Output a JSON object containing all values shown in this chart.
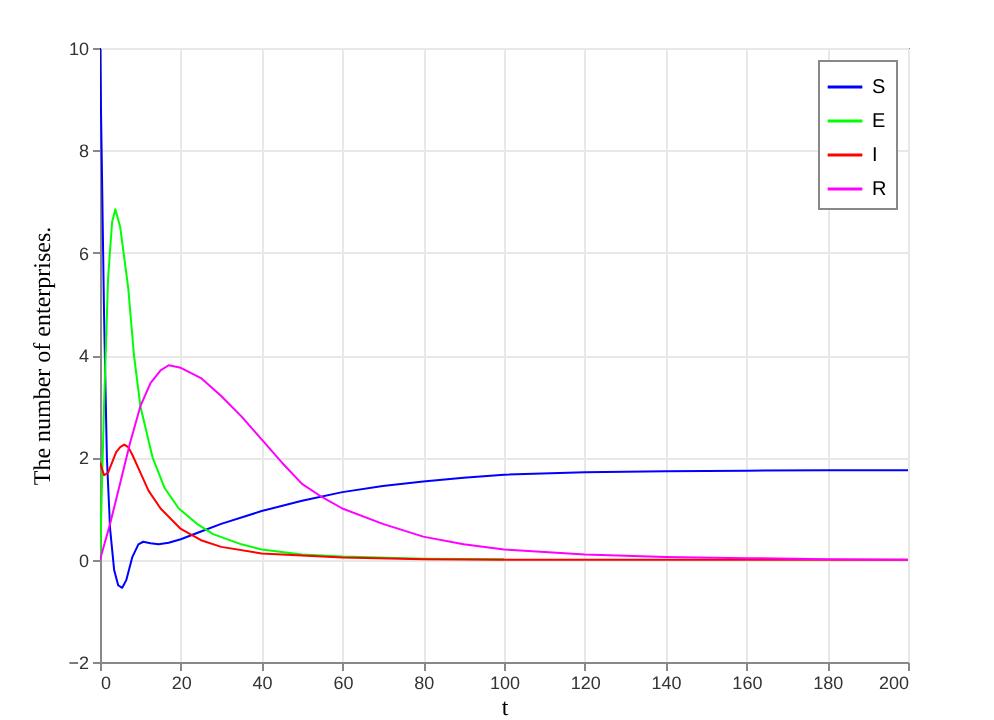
{
  "chart_data": {
    "type": "line",
    "xlabel": "t",
    "ylabel": "The number of enterprises.",
    "xlim": [
      0,
      200
    ],
    "ylim": [
      -2,
      10
    ],
    "xticks": [
      0,
      20,
      40,
      60,
      80,
      100,
      120,
      140,
      160,
      180,
      200
    ],
    "yticks": [
      -2,
      0,
      2,
      4,
      6,
      8,
      10
    ],
    "grid": true,
    "legend": "top right",
    "line_style": "solid",
    "marker": "none",
    "series": [
      {
        "name": "S",
        "color": "#0000ff",
        "x": [
          0,
          0.5,
          1,
          1.7,
          2.5,
          3.5,
          4.5,
          5.5,
          6.5,
          8,
          9.5,
          10.7,
          12.5,
          14.5,
          17,
          20,
          25,
          30,
          40,
          50,
          60,
          70,
          80,
          90,
          100,
          120,
          140,
          160,
          180,
          200
        ],
        "values": [
          10,
          7.5,
          4.8,
          2,
          0.6,
          -0.2,
          -0.5,
          -0.55,
          -0.4,
          0.05,
          0.3,
          0.35,
          0.32,
          0.3,
          0.33,
          0.4,
          0.55,
          0.7,
          0.95,
          1.15,
          1.32,
          1.44,
          1.53,
          1.6,
          1.66,
          1.71,
          1.73,
          1.74,
          1.75,
          1.75
        ]
      },
      {
        "name": "E",
        "color": "#00ff00",
        "x": [
          0,
          0.5,
          1,
          2,
          3,
          3.8,
          5,
          7,
          8.4,
          10,
          13,
          16,
          19.5,
          24,
          28,
          35,
          40,
          50,
          60,
          80,
          100
        ],
        "values": [
          0,
          1.5,
          3,
          5.5,
          6.6,
          6.85,
          6.5,
          5.3,
          4,
          3,
          2,
          1.4,
          1,
          0.7,
          0.5,
          0.3,
          0.2,
          0.1,
          0.06,
          0.02,
          0.01
        ]
      },
      {
        "name": "I",
        "color": "#ff0000",
        "x": [
          0,
          1,
          2,
          3,
          4,
          5,
          6,
          7,
          8,
          10,
          12,
          15,
          20,
          25,
          30,
          40,
          60,
          80,
          100,
          150,
          200
        ],
        "values": [
          1.9,
          1.65,
          1.7,
          1.9,
          2.1,
          2.2,
          2.25,
          2.2,
          2.05,
          1.7,
          1.35,
          1,
          0.6,
          0.38,
          0.25,
          0.12,
          0.04,
          0.01,
          0,
          0,
          0
        ]
      },
      {
        "name": "R",
        "color": "#ff00ff",
        "x": [
          0,
          2.5,
          5,
          7.5,
          10,
          12.5,
          15,
          17,
          20,
          25,
          30,
          35,
          40,
          45,
          50,
          55,
          60,
          70,
          80,
          90,
          100,
          120,
          140,
          160,
          180,
          200
        ],
        "values": [
          0,
          0.7,
          1.5,
          2.3,
          3,
          3.45,
          3.7,
          3.8,
          3.75,
          3.55,
          3.2,
          2.8,
          2.35,
          1.9,
          1.48,
          1.22,
          1,
          0.7,
          0.45,
          0.3,
          0.2,
          0.1,
          0.05,
          0.03,
          0.01,
          0
        ]
      }
    ]
  }
}
